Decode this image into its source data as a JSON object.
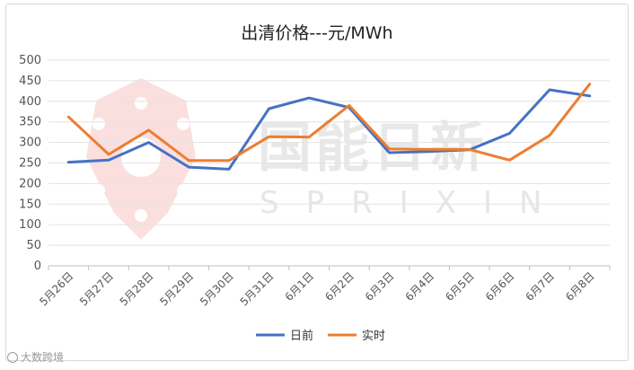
{
  "chart_data": {
    "type": "line",
    "title": "出清价格---元/MWh",
    "xlabel": "",
    "ylabel": "",
    "ylim": [
      0,
      500
    ],
    "ytick_step": 50,
    "categories": [
      "5月26日",
      "5月27日",
      "5月28日",
      "5月29日",
      "5月30日",
      "5月31日",
      "6月1日",
      "6月2日",
      "6月3日",
      "6月4日",
      "6月5日",
      "6月6日",
      "6月7日",
      "6月8日"
    ],
    "series": [
      {
        "name": "日前",
        "color": "#4472c4",
        "values": [
          252,
          257,
          300,
          240,
          235,
          382,
          408,
          385,
          275,
          278,
          282,
          322,
          428,
          413
        ]
      },
      {
        "name": "实时",
        "color": "#ed7d31",
        "values": [
          362,
          271,
          330,
          256,
          256,
          314,
          313,
          390,
          284,
          283,
          283,
          257,
          317,
          442
        ]
      }
    ],
    "grid": true,
    "legend": "bottom"
  },
  "watermark": {
    "title": "国能日新",
    "subtitle": "SPRIXIN"
  },
  "brand": {
    "label": "大数跨境"
  }
}
